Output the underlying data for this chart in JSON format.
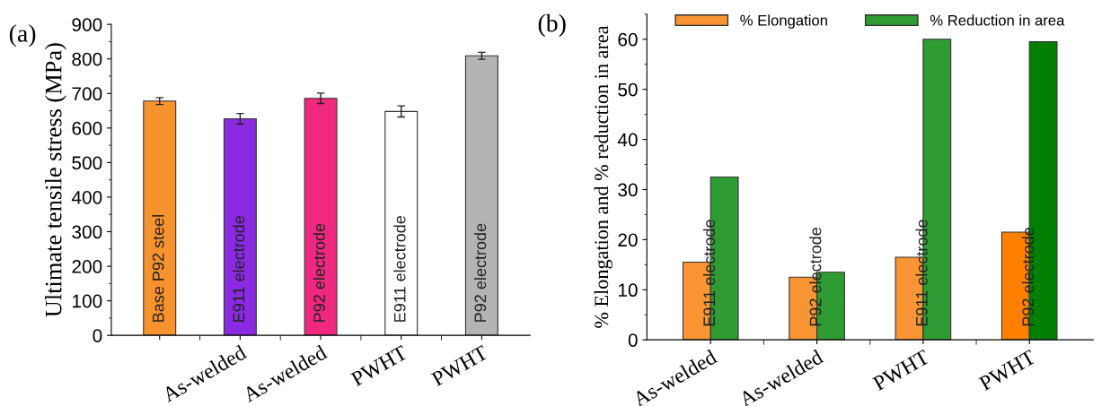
{
  "chart_data": [
    {
      "type": "bar",
      "title": "(a)",
      "ylabel": "Ultimate tensile stress (MPa)",
      "categories": [
        null,
        "As-welded",
        "As-welded",
        "PWHT",
        "PWHT"
      ],
      "values": [
        678,
        627,
        686,
        648,
        809
      ],
      "errors": [
        10,
        15,
        15,
        16,
        10
      ],
      "colors": [
        "#f7932f",
        "#8a2be2",
        "#f0287f",
        "#ffffff",
        "#b4b4b4"
      ],
      "annotations": [
        "Base P92 steel",
        "E911 electrode",
        "P92 electrode",
        "E911 electrode",
        "P92 electrode"
      ],
      "ylim": [
        0,
        900
      ],
      "yticks": [
        0,
        100,
        200,
        300,
        400,
        500,
        600,
        700,
        800,
        900
      ],
      "grid": false
    },
    {
      "type": "bar",
      "title": "(b)",
      "ylabel": "% Elongation and % reduction in area",
      "categories": [
        "As-welded",
        "As-welded",
        "PWHT",
        "PWHT"
      ],
      "series": [
        {
          "name": "% Elongation",
          "color": "#f99532",
          "colors": [
            "#f99532",
            "#f99532",
            "#f99532",
            "#ff8000"
          ],
          "values": [
            15.5,
            12.5,
            16.5,
            21.5
          ]
        },
        {
          "name": "% Reduction in area",
          "color": "#2e9b33",
          "colors": [
            "#2e9b33",
            "#2e9b33",
            "#2e9b33",
            "#007f00"
          ],
          "values": [
            32.5,
            13.5,
            60,
            59.5
          ]
        }
      ],
      "annotations": [
        "E911 electrode",
        "P92 electrode",
        "E911 electrode",
        "P92 electrode"
      ],
      "ylim": [
        0,
        65
      ],
      "yticks": [
        0,
        10,
        20,
        30,
        40,
        50,
        60
      ],
      "grid": false,
      "legend": "top"
    }
  ]
}
